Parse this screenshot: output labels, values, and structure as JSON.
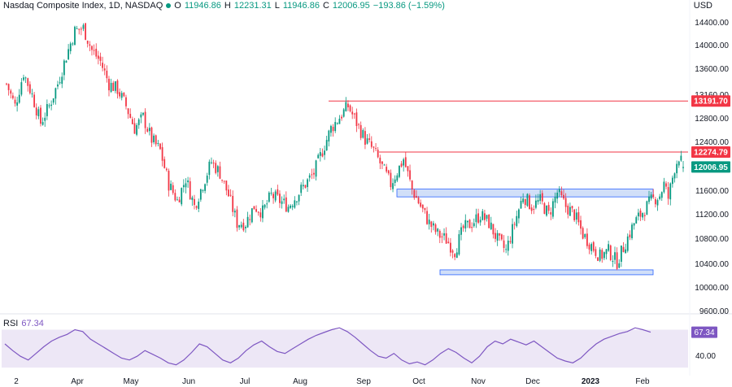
{
  "header": {
    "symbol": "Nasdaq Composite Index, 1D, NASDAQ",
    "o_label": "O",
    "o_value": "11946.86",
    "h_label": "H",
    "h_value": "12231.31",
    "l_label": "L",
    "l_value": "11946.86",
    "c_label": "C",
    "c_value": "12006.95",
    "change": "−193.86 (−1.59%)",
    "status_color": "#089981"
  },
  "currency": "USD",
  "colors": {
    "up": "#089981",
    "down": "#f23645",
    "resistance": "#f23645",
    "zone_fill": "#c9d9f7",
    "zone_stroke": "#2962ff",
    "rsi_line": "#7e57c2",
    "rsi_band": "#ede7f6"
  },
  "chart_data": [
    {
      "type": "candlestick",
      "ylim": [
        9400,
        14800
      ],
      "y_ticks": [
        "14400.00",
        "14000.00",
        "13600.00",
        "13160.00",
        "12800.00",
        "12400.00",
        "11600.00",
        "11200.00",
        "10800.00",
        "10400.00",
        "10000.00",
        "9600.00"
      ],
      "x_tick_labels": [
        "2",
        "Apr",
        "May",
        "Jun",
        "Jul",
        "Aug",
        "Sep",
        "Oct",
        "Nov",
        "Dec",
        "2023",
        "Feb"
      ],
      "close_path": [
        [
          0,
          13500
        ],
        [
          4,
          13100
        ],
        [
          8,
          13700
        ],
        [
          12,
          13300
        ],
        [
          16,
          12800
        ],
        [
          20,
          13100
        ],
        [
          24,
          13500
        ],
        [
          28,
          14000
        ],
        [
          32,
          14450
        ],
        [
          36,
          14500
        ],
        [
          40,
          14100
        ],
        [
          44,
          13900
        ],
        [
          48,
          13500
        ],
        [
          52,
          13400
        ],
        [
          56,
          13100
        ],
        [
          60,
          12700
        ],
        [
          64,
          12900
        ],
        [
          68,
          12500
        ],
        [
          72,
          12300
        ],
        [
          76,
          11700
        ],
        [
          80,
          11400
        ],
        [
          84,
          11800
        ],
        [
          88,
          11300
        ],
        [
          92,
          11700
        ],
        [
          96,
          12100
        ],
        [
          100,
          11900
        ],
        [
          104,
          11500
        ],
        [
          108,
          11000
        ],
        [
          112,
          11000
        ],
        [
          116,
          11300
        ],
        [
          120,
          11200
        ],
        [
          124,
          11500
        ],
        [
          128,
          11400
        ],
        [
          132,
          11300
        ],
        [
          136,
          11500
        ],
        [
          140,
          11700
        ],
        [
          144,
          11900
        ],
        [
          148,
          12300
        ],
        [
          152,
          12700
        ],
        [
          156,
          12900
        ],
        [
          160,
          13100
        ],
        [
          164,
          12800
        ],
        [
          168,
          12500
        ],
        [
          172,
          12300
        ],
        [
          176,
          12000
        ],
        [
          180,
          11700
        ],
        [
          184,
          12000
        ],
        [
          186,
          12150
        ],
        [
          190,
          11600
        ],
        [
          194,
          11300
        ],
        [
          198,
          11000
        ],
        [
          202,
          10800
        ],
        [
          206,
          10700
        ],
        [
          210,
          10500
        ],
        [
          214,
          10900
        ],
        [
          218,
          11000
        ],
        [
          222,
          11150
        ],
        [
          226,
          11000
        ],
        [
          230,
          10700
        ],
        [
          234,
          10500
        ],
        [
          238,
          11000
        ],
        [
          242,
          11500
        ],
        [
          246,
          11300
        ],
        [
          250,
          11400
        ],
        [
          254,
          11150
        ],
        [
          258,
          11550
        ],
        [
          262,
          11300
        ],
        [
          266,
          11150
        ],
        [
          270,
          10800
        ],
        [
          274,
          10600
        ],
        [
          278,
          10400
        ],
        [
          282,
          10500
        ],
        [
          286,
          10300
        ],
        [
          290,
          10650
        ],
        [
          294,
          11000
        ],
        [
          298,
          11200
        ],
        [
          302,
          11400
        ],
        [
          306,
          11500
        ],
        [
          308,
          11700
        ],
        [
          310,
          11450
        ],
        [
          313,
          12000
        ],
        [
          315,
          12200
        ],
        [
          317,
          12006.95
        ]
      ],
      "marked_prices": [
        {
          "value": 13191.7,
          "label": "13191.70",
          "kind": "resistance"
        },
        {
          "value": 12274.79,
          "label": "12274.79",
          "kind": "resistance"
        },
        {
          "value": 12006.95,
          "label": "12006.95",
          "kind": "last"
        }
      ],
      "zones": [
        {
          "from": 11470,
          "to": 11610,
          "kind": "support-resistance"
        },
        {
          "from": 10080,
          "to": 10160,
          "kind": "support"
        }
      ]
    },
    {
      "type": "line",
      "title": "RSI",
      "last_value": "67.34",
      "ylim": [
        25,
        85
      ],
      "y_ticks": [
        "60.00",
        "40.00"
      ],
      "band": [
        30,
        70
      ],
      "values": [
        55,
        48,
        42,
        38,
        45,
        52,
        58,
        62,
        65,
        70,
        68,
        60,
        55,
        50,
        45,
        40,
        38,
        42,
        48,
        44,
        40,
        35,
        33,
        38,
        46,
        55,
        52,
        45,
        38,
        35,
        40,
        48,
        54,
        58,
        52,
        47,
        45,
        50,
        55,
        60,
        64,
        67,
        70,
        72,
        68,
        62,
        55,
        48,
        42,
        40,
        45,
        38,
        34,
        36,
        33,
        38,
        45,
        50,
        46,
        40,
        35,
        42,
        52,
        58,
        55,
        60,
        57,
        54,
        58,
        52,
        46,
        40,
        37,
        35,
        40,
        48,
        55,
        60,
        63,
        66,
        68,
        72,
        70,
        67.34
      ]
    }
  ]
}
